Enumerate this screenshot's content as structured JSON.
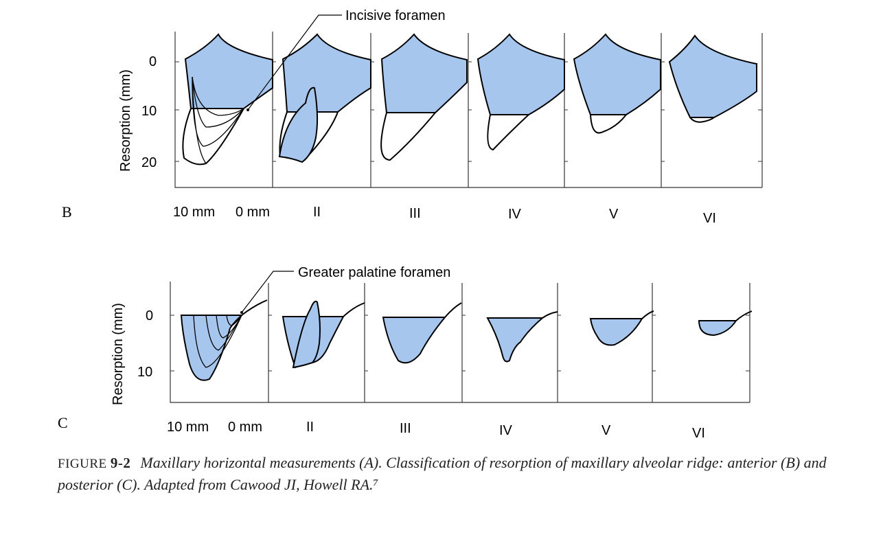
{
  "panels": {
    "B": {
      "letter": "B",
      "y_axis_label": "Resorption (mm)",
      "y_ticks": [
        "0",
        "10",
        "20"
      ],
      "x_labels": [
        "10 mm",
        "0 mm",
        "II",
        "III",
        "IV",
        "V",
        "VI"
      ],
      "callout": "Incisive foramen"
    },
    "C": {
      "letter": "C",
      "y_axis_label": "Resorption (mm)",
      "y_ticks": [
        "0",
        "10"
      ],
      "x_labels": [
        "10 mm",
        "0 mm",
        "II",
        "III",
        "IV",
        "V",
        "VI"
      ],
      "callout": "Greater palatine foramen"
    }
  },
  "caption": {
    "label_prefix": "FIGURE ",
    "label_number": "9-2",
    "text": "Maxillary horizontal measurements (A). Classification of resorption of maxillary alveolar ridge: anterior (B) and posterior (C). Adapted from Cawood JI, Howell RA.⁷"
  },
  "colors": {
    "fill": "#a7c6ee",
    "outline": "#000000",
    "axis": "#333333"
  }
}
